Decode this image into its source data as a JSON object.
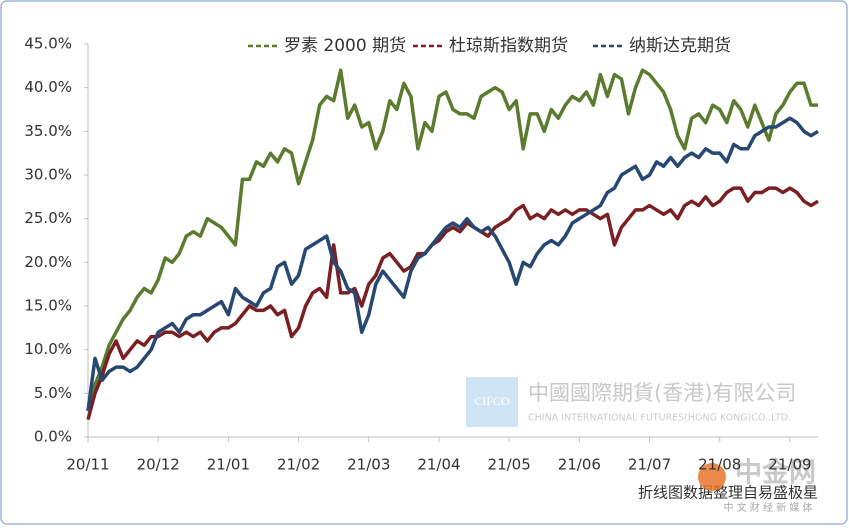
{
  "chart_data": {
    "type": "line",
    "categories": [
      "20/11",
      null,
      null,
      null,
      null,
      null,
      null,
      null,
      null,
      null,
      "20/12",
      null,
      null,
      null,
      null,
      null,
      null,
      null,
      null,
      null,
      "21/01",
      null,
      null,
      null,
      null,
      null,
      null,
      null,
      null,
      null,
      "21/02",
      null,
      null,
      null,
      null,
      null,
      null,
      null,
      null,
      null,
      "21/03",
      null,
      null,
      null,
      null,
      null,
      null,
      null,
      null,
      null,
      "21/04",
      null,
      null,
      null,
      null,
      null,
      null,
      null,
      null,
      null,
      "21/05",
      null,
      null,
      null,
      null,
      null,
      null,
      null,
      null,
      null,
      "21/06",
      null,
      null,
      null,
      null,
      null,
      null,
      null,
      null,
      null,
      "21/07",
      null,
      null,
      null,
      null,
      null,
      null,
      null,
      null,
      null,
      "21/08",
      null,
      null,
      null,
      null,
      null,
      null,
      null,
      null,
      null,
      "21/09",
      null,
      null,
      null,
      null
    ],
    "series": [
      {
        "name": "罗素 2000 期货",
        "color": "#5b7b2f",
        "values": [
          3,
          6,
          8,
          10.5,
          12,
          13.5,
          14.5,
          16,
          17,
          16.5,
          18,
          20.5,
          20,
          21,
          23,
          23.5,
          23,
          25,
          24.5,
          24,
          23,
          22,
          29.5,
          29.5,
          31.5,
          31,
          32.5,
          31.5,
          33,
          32.5,
          29,
          31.5,
          34,
          38,
          39,
          38.5,
          42,
          36.5,
          38,
          35.5,
          36,
          33,
          35,
          38.5,
          37.5,
          40.5,
          39,
          33,
          36,
          35,
          39,
          39.5,
          37.5,
          37,
          37,
          36.5,
          39,
          39.5,
          40,
          39.5,
          37.5,
          38.5,
          33,
          37,
          37,
          35,
          37.5,
          36.5,
          38,
          39,
          38.5,
          39.5,
          38,
          41.5,
          39,
          41.5,
          41,
          37,
          40,
          42,
          41.5,
          40.5,
          39.5,
          37.5,
          34.5,
          33,
          36.5,
          37,
          36,
          38,
          37.5,
          36,
          38.5,
          37.5,
          35.5,
          38,
          36,
          34,
          37,
          38,
          39.5,
          40.5,
          40.5,
          38,
          38
        ]
      },
      {
        "name": "杜琼斯指数期货",
        "color": "#7a1f22",
        "values": [
          2,
          5,
          7,
          9.5,
          11,
          9,
          10,
          11,
          10.5,
          11.5,
          11.5,
          12,
          12,
          11.5,
          12,
          11.5,
          12,
          11,
          12,
          12.5,
          12.5,
          13,
          14,
          15,
          14.5,
          14.5,
          15,
          14,
          14.5,
          11.5,
          12.5,
          15,
          16.5,
          17,
          16,
          22,
          16.5,
          16.5,
          17,
          15,
          17.5,
          18.5,
          20.5,
          21,
          20,
          19,
          19.5,
          21,
          21,
          22,
          22.5,
          23.5,
          24,
          23.5,
          24.5,
          24,
          23.5,
          23,
          24,
          24.5,
          25,
          26,
          26.5,
          25,
          25.5,
          25,
          26,
          25.5,
          26,
          25.5,
          26,
          26,
          25.5,
          25,
          25.5,
          22,
          24,
          25,
          26,
          26,
          26.5,
          26,
          25.5,
          26,
          25,
          26.5,
          27,
          26.5,
          27.5,
          26.5,
          27,
          28,
          28.5,
          28.5,
          27,
          28,
          28,
          28.5,
          28.5,
          28,
          28.5,
          28,
          27,
          26.5,
          27
        ]
      },
      {
        "name": "纳斯达克期货",
        "color": "#264872",
        "values": [
          3,
          9,
          6.5,
          7.5,
          8,
          8,
          7.5,
          8,
          9,
          10,
          12,
          12.5,
          13,
          12,
          13.5,
          14,
          14,
          14.5,
          15,
          15.5,
          14,
          17,
          16,
          15.5,
          15,
          16.5,
          17,
          19.5,
          20,
          17.5,
          18.5,
          21.5,
          22,
          22.5,
          23,
          20,
          19,
          17,
          16.5,
          12,
          14,
          17.5,
          19,
          18,
          17,
          16,
          19,
          20.5,
          21,
          22,
          23,
          24,
          24.5,
          24,
          25,
          24,
          23.5,
          24,
          23,
          21.5,
          20,
          17.5,
          20,
          19.5,
          21,
          22,
          22.5,
          22,
          23,
          24.5,
          25,
          25.5,
          26,
          26.5,
          28,
          28.5,
          30,
          30.5,
          31,
          29.5,
          30,
          31.5,
          31,
          32,
          31,
          32,
          32.5,
          32,
          33,
          32.5,
          32.5,
          31.5,
          33.5,
          33,
          33,
          34.5,
          35,
          35.5,
          35.5,
          36,
          36.5,
          36,
          35,
          34.5,
          35
        ]
      }
    ],
    "ylim": [
      0,
      45
    ],
    "yticks": [
      {
        "value": 0,
        "label": "0.0%"
      },
      {
        "value": 5,
        "label": "5.0%"
      },
      {
        "value": 10,
        "label": "10.0%"
      },
      {
        "value": 15,
        "label": "15.0%"
      },
      {
        "value": 20,
        "label": "20.0%"
      },
      {
        "value": 25,
        "label": "25.0%"
      },
      {
        "value": 30,
        "label": "30.0%"
      },
      {
        "value": 35,
        "label": "35.0%"
      },
      {
        "value": 40,
        "label": "40.0%"
      },
      {
        "value": 45,
        "label": "45.0%"
      }
    ],
    "grid": false,
    "legend": "top-right",
    "watermark": {
      "logo": "CIFCO",
      "company": "中國國際期貨(香港)有限公司",
      "company_en": "CHINA INTERNATIONAL FUTURES(HONG KONG)CO.,LTD."
    },
    "source_note": "折线图数据整理自易盛极星",
    "site_logo": "中金网",
    "site_slogan": "中 文 财 经 新 媒 体"
  }
}
